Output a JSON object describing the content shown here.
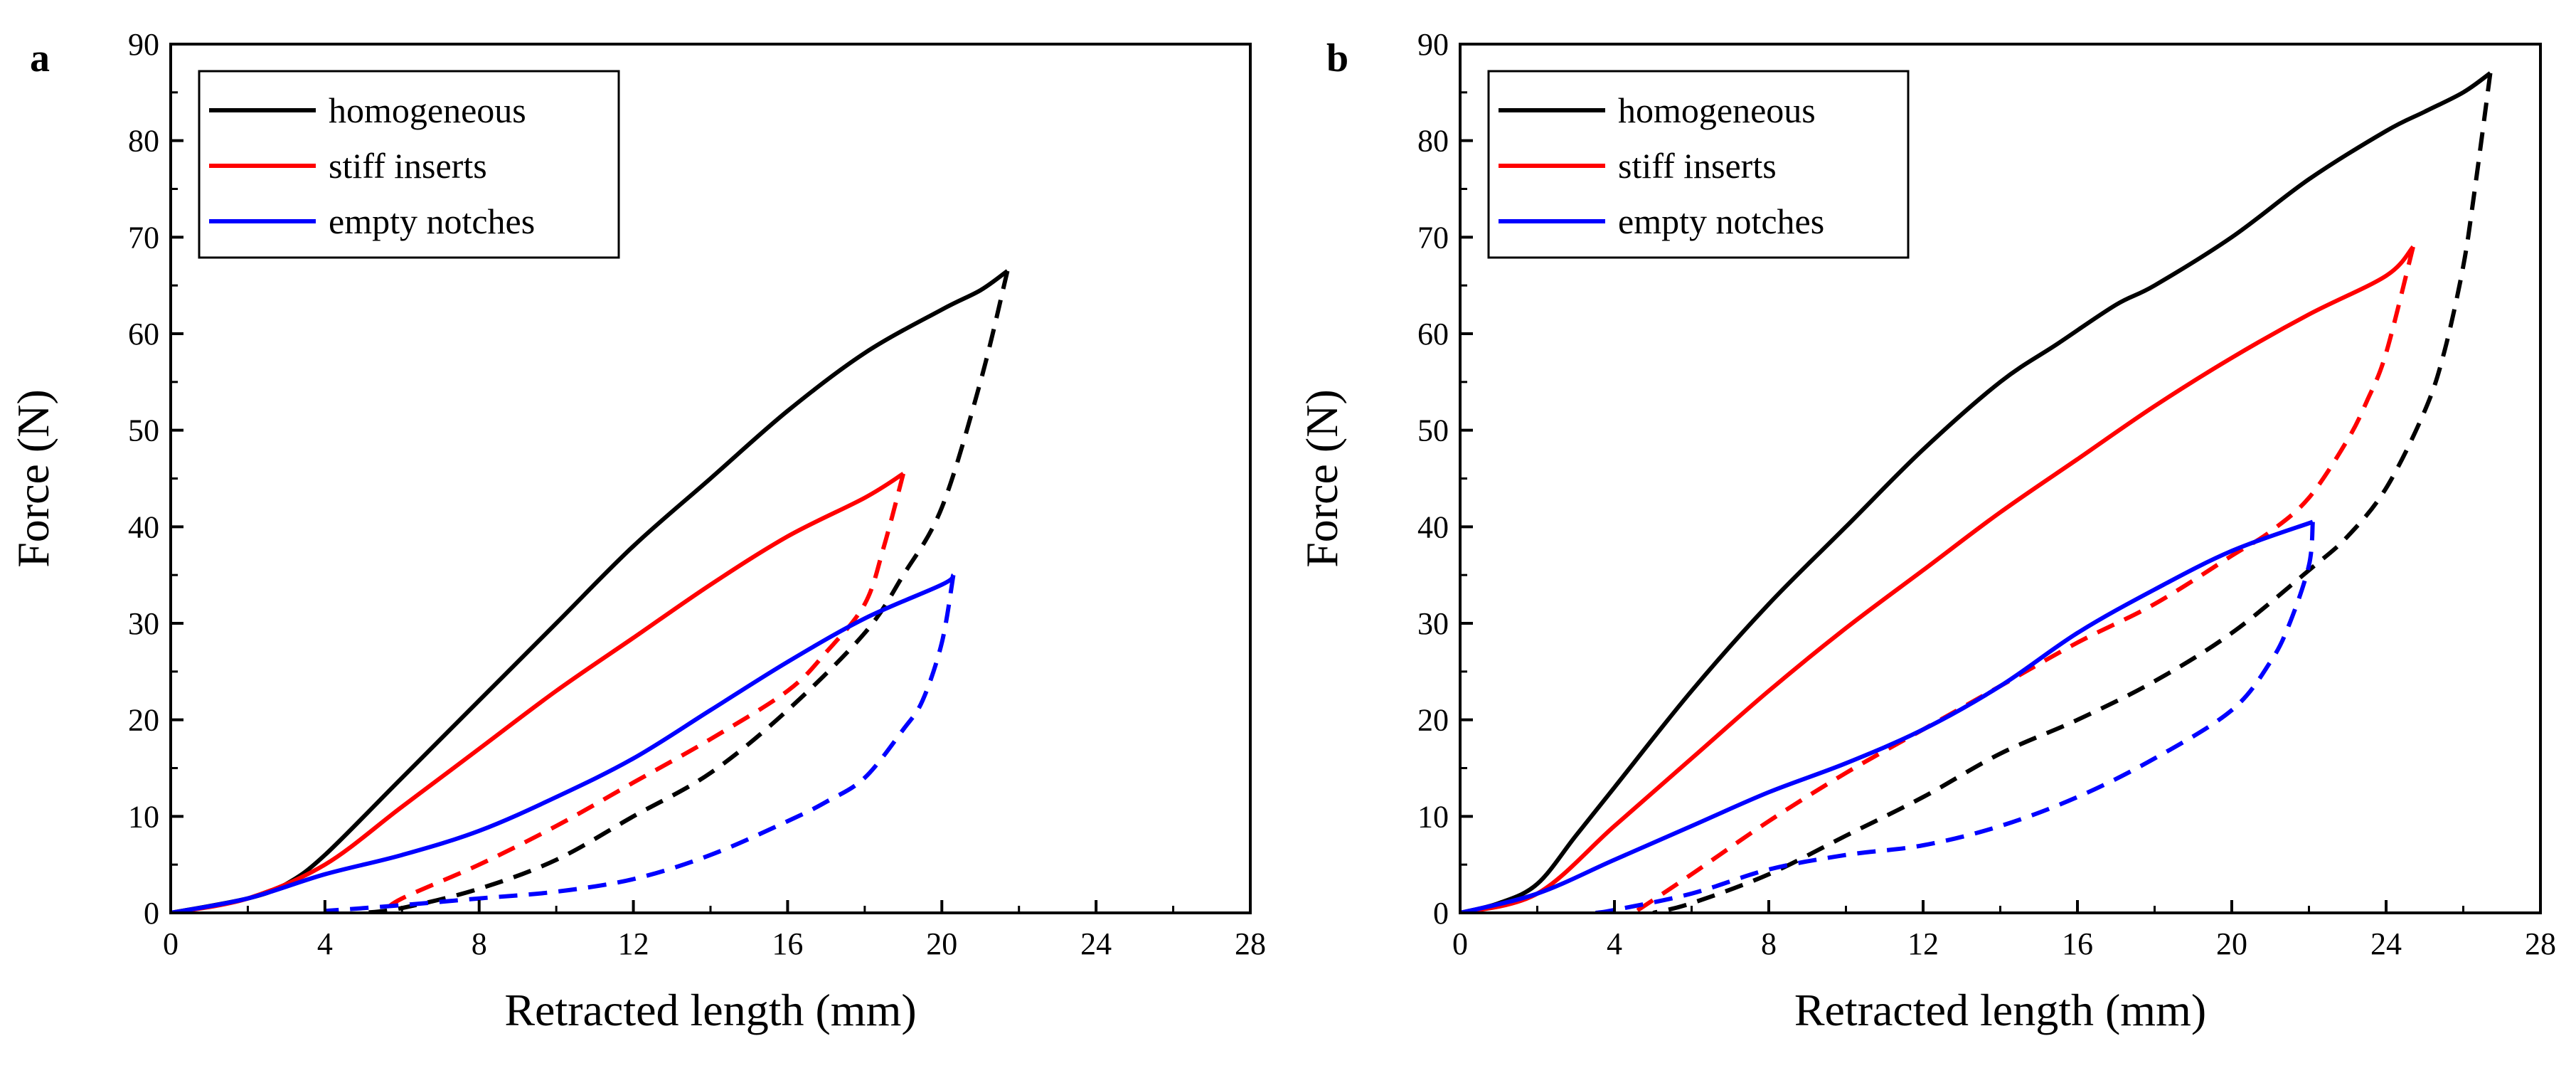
{
  "chart_data": [
    {
      "type": "line",
      "panel_label": "a",
      "xlabel": "Retracted length (mm)",
      "ylabel": "Force (N)",
      "xlim": [
        0,
        28
      ],
      "ylim": [
        0,
        90
      ],
      "x_ticks": [
        "0",
        "4",
        "8",
        "12",
        "16",
        "20",
        "24",
        "28"
      ],
      "y_ticks": [
        "0",
        "10",
        "20",
        "30",
        "40",
        "50",
        "60",
        "70",
        "80",
        "90"
      ],
      "legend": [
        "homogeneous",
        "stiff inserts",
        "empty notches"
      ],
      "legend_position": "top-left",
      "series": [
        {
          "name": "homogeneous",
          "color": "#000000",
          "phase": "loading",
          "x": [
            0,
            2,
            3,
            4,
            6,
            8,
            10,
            12,
            14,
            16,
            18,
            20,
            21,
            21.7
          ],
          "y": [
            0,
            1.5,
            3,
            6,
            14,
            22,
            30,
            38,
            45,
            52,
            58,
            62.5,
            64.5,
            66.5
          ]
        },
        {
          "name": "homogeneous",
          "color": "#000000",
          "phase": "unloading",
          "x": [
            21.7,
            21,
            20,
            19,
            18,
            16,
            14,
            12,
            10,
            8,
            6,
            5
          ],
          "y": [
            66.5,
            55,
            42,
            35,
            29,
            21,
            14.5,
            10,
            5.5,
            2.5,
            0.5,
            0
          ]
        },
        {
          "name": "stiff inserts",
          "color": "#ff0000",
          "phase": "loading",
          "x": [
            0,
            2,
            4,
            6,
            8,
            10,
            12,
            14,
            16,
            18,
            19
          ],
          "y": [
            0,
            1.5,
            5,
            11,
            17,
            23,
            28.5,
            34,
            39,
            43,
            45.5
          ]
        },
        {
          "name": "stiff inserts",
          "color": "#ff0000",
          "phase": "unloading",
          "x": [
            19,
            18.5,
            18,
            17,
            16,
            14,
            12,
            10,
            8,
            6,
            5.5
          ],
          "y": [
            45.5,
            38,
            32,
            27,
            23,
            18,
            13.5,
            9,
            5,
            1.5,
            0
          ]
        },
        {
          "name": "empty notches",
          "color": "#0000ff",
          "phase": "loading",
          "x": [
            0,
            2,
            4,
            6,
            8,
            10,
            12,
            14,
            16,
            18,
            20,
            20.3
          ],
          "y": [
            0,
            1.5,
            4,
            6,
            8.5,
            12,
            16,
            21,
            26,
            30.5,
            34,
            35
          ]
        },
        {
          "name": "empty notches",
          "color": "#0000ff",
          "phase": "unloading",
          "x": [
            20.3,
            20,
            19.5,
            19,
            18,
            17,
            16,
            14,
            12,
            10,
            8,
            6,
            4
          ],
          "y": [
            35,
            28,
            22,
            19,
            14,
            11.5,
            9.5,
            6,
            3.5,
            2.2,
            1.5,
            0.8,
            0.2
          ]
        }
      ]
    },
    {
      "type": "line",
      "panel_label": "b",
      "xlabel": "Retracted length (mm)",
      "ylabel": "Force (N)",
      "xlim": [
        0,
        28
      ],
      "ylim": [
        0,
        90
      ],
      "x_ticks": [
        "0",
        "4",
        "8",
        "12",
        "16",
        "20",
        "24",
        "28"
      ],
      "y_ticks": [
        "0",
        "10",
        "20",
        "30",
        "40",
        "50",
        "60",
        "70",
        "80",
        "90"
      ],
      "legend": [
        "homogeneous",
        "stiff inserts",
        "empty notches"
      ],
      "legend_position": "top-left",
      "series": [
        {
          "name": "homogeneous",
          "color": "#000000",
          "phase": "loading",
          "x": [
            0,
            1,
            2,
            3,
            4,
            6,
            8,
            10,
            12,
            14,
            15.5,
            17,
            18,
            20,
            22,
            24,
            25,
            26,
            26.7
          ],
          "y": [
            0,
            1,
            3,
            8,
            13,
            23,
            32,
            40,
            48,
            55,
            59,
            63,
            65,
            70,
            76,
            81,
            83,
            85,
            87
          ]
        },
        {
          "name": "homogeneous",
          "color": "#000000",
          "phase": "unloading",
          "x": [
            26.7,
            26.3,
            26,
            25.5,
            25,
            24,
            23,
            22,
            20,
            18,
            16,
            14,
            12,
            10,
            8,
            6,
            5
          ],
          "y": [
            87,
            75,
            67,
            58,
            52,
            44,
            39,
            35.5,
            29,
            24,
            20,
            16.5,
            12,
            8,
            4,
            1,
            0
          ]
        },
        {
          "name": "stiff inserts",
          "color": "#ff0000",
          "phase": "loading",
          "x": [
            0,
            2,
            4,
            6,
            8,
            10,
            12,
            14,
            16,
            18,
            20,
            22,
            24,
            24.7
          ],
          "y": [
            0,
            2,
            9,
            16,
            23,
            29.5,
            35.5,
            41.5,
            47,
            52.5,
            57.5,
            62,
            66,
            69
          ]
        },
        {
          "name": "stiff inserts",
          "color": "#ff0000",
          "phase": "unloading",
          "x": [
            24.7,
            24,
            23.5,
            23,
            22,
            21,
            20,
            18,
            16,
            14,
            12,
            10,
            8,
            6,
            4.5
          ],
          "y": [
            69,
            58,
            53,
            49,
            43,
            39.5,
            37,
            32,
            28,
            23.5,
            19,
            14.5,
            9.5,
            4,
            0
          ]
        },
        {
          "name": "empty notches",
          "color": "#0000ff",
          "phase": "loading",
          "x": [
            0,
            2,
            4,
            6,
            8,
            10,
            12,
            14,
            16,
            18,
            20,
            22.1
          ],
          "y": [
            0,
            2,
            5.5,
            9,
            12.5,
            15.5,
            19,
            23.5,
            29,
            33.5,
            37.5,
            40.5
          ]
        },
        {
          "name": "empty notches",
          "color": "#0000ff",
          "phase": "unloading",
          "x": [
            22.1,
            22,
            21.5,
            21,
            20,
            18,
            16,
            14,
            12,
            10,
            8,
            6,
            4,
            3.5
          ],
          "y": [
            40.5,
            36,
            30,
            26,
            21,
            16,
            12,
            9,
            7,
            6,
            4.5,
            2,
            0.3,
            0
          ]
        }
      ]
    }
  ]
}
